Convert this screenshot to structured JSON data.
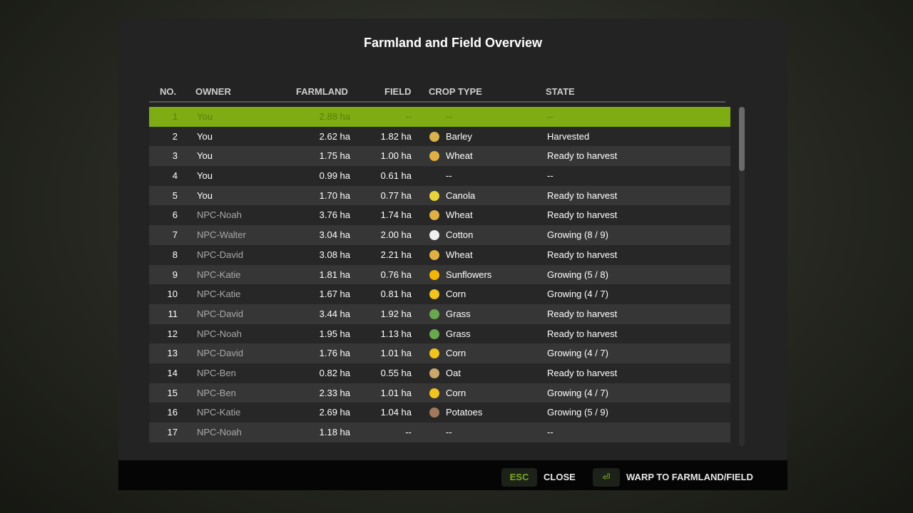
{
  "title": "Farmland and Field Overview",
  "columns": {
    "no": "NO.",
    "owner": "OWNER",
    "farmland": "FARMLAND",
    "field": "FIELD",
    "crop": "CROP TYPE",
    "state": "STATE"
  },
  "rows": [
    {
      "no": "1",
      "owner": "You",
      "farmland": "2.88 ha",
      "field": "--",
      "crop": "--",
      "state": "--",
      "icon": "",
      "selected": true
    },
    {
      "no": "2",
      "owner": "You",
      "farmland": "2.62 ha",
      "field": "1.82 ha",
      "crop": "Barley",
      "state": "Harvested",
      "icon": "barley-icon"
    },
    {
      "no": "3",
      "owner": "You",
      "farmland": "1.75 ha",
      "field": "1.00 ha",
      "crop": "Wheat",
      "state": "Ready to harvest",
      "icon": "wheat-icon"
    },
    {
      "no": "4",
      "owner": "You",
      "farmland": "0.99 ha",
      "field": "0.61 ha",
      "crop": "--",
      "state": "--",
      "icon": ""
    },
    {
      "no": "5",
      "owner": "You",
      "farmland": "1.70 ha",
      "field": "0.77 ha",
      "crop": "Canola",
      "state": "Ready to harvest",
      "icon": "canola-icon"
    },
    {
      "no": "6",
      "owner": "NPC-Noah",
      "farmland": "3.76 ha",
      "field": "1.74 ha",
      "crop": "Wheat",
      "state": "Ready to harvest",
      "icon": "wheat-icon"
    },
    {
      "no": "7",
      "owner": "NPC-Walter",
      "farmland": "3.04 ha",
      "field": "2.00 ha",
      "crop": "Cotton",
      "state": "Growing (8 / 9)",
      "icon": "cotton-icon"
    },
    {
      "no": "8",
      "owner": "NPC-David",
      "farmland": "3.08 ha",
      "field": "2.21 ha",
      "crop": "Wheat",
      "state": "Ready to harvest",
      "icon": "wheat-icon"
    },
    {
      "no": "9",
      "owner": "NPC-Katie",
      "farmland": "1.81 ha",
      "field": "0.76 ha",
      "crop": "Sunflowers",
      "state": "Growing (5 / 8)",
      "icon": "sunflower-icon"
    },
    {
      "no": "10",
      "owner": "NPC-Katie",
      "farmland": "1.67 ha",
      "field": "0.81 ha",
      "crop": "Corn",
      "state": "Growing (4 / 7)",
      "icon": "corn-icon"
    },
    {
      "no": "11",
      "owner": "NPC-David",
      "farmland": "3.44 ha",
      "field": "1.92 ha",
      "crop": "Grass",
      "state": "Ready to harvest",
      "icon": "grass-icon"
    },
    {
      "no": "12",
      "owner": "NPC-Noah",
      "farmland": "1.95 ha",
      "field": "1.13 ha",
      "crop": "Grass",
      "state": "Ready to harvest",
      "icon": "grass-icon"
    },
    {
      "no": "13",
      "owner": "NPC-David",
      "farmland": "1.76 ha",
      "field": "1.01 ha",
      "crop": "Corn",
      "state": "Growing (4 / 7)",
      "icon": "corn-icon"
    },
    {
      "no": "14",
      "owner": "NPC-Ben",
      "farmland": "0.82 ha",
      "field": "0.55 ha",
      "crop": "Oat",
      "state": "Ready to harvest",
      "icon": "oat-icon"
    },
    {
      "no": "15",
      "owner": "NPC-Ben",
      "farmland": "2.33 ha",
      "field": "1.01 ha",
      "crop": "Corn",
      "state": "Growing (4 / 7)",
      "icon": "corn-icon"
    },
    {
      "no": "16",
      "owner": "NPC-Katie",
      "farmland": "2.69 ha",
      "field": "1.04 ha",
      "crop": "Potatoes",
      "state": "Growing (5 / 9)",
      "icon": "potato-icon"
    },
    {
      "no": "17",
      "owner": "NPC-Noah",
      "farmland": "1.18 ha",
      "field": "--",
      "crop": "--",
      "state": "--",
      "icon": ""
    }
  ],
  "icon_colors": {
    "barley-icon": "#d9b24a",
    "wheat-icon": "#e0b040",
    "canola-icon": "#e8d33a",
    "cotton-icon": "#eeeeee",
    "sunflower-icon": "#f2b500",
    "corn-icon": "#f0c419",
    "grass-icon": "#6aa84f",
    "oat-icon": "#c9a66b",
    "potato-icon": "#a07a5a"
  },
  "footer": {
    "close_key": "ESC",
    "close_label": "CLOSE",
    "warp_key": "⏎",
    "warp_label": "WARP TO FARMLAND/FIELD"
  },
  "accent": "#7eac12"
}
